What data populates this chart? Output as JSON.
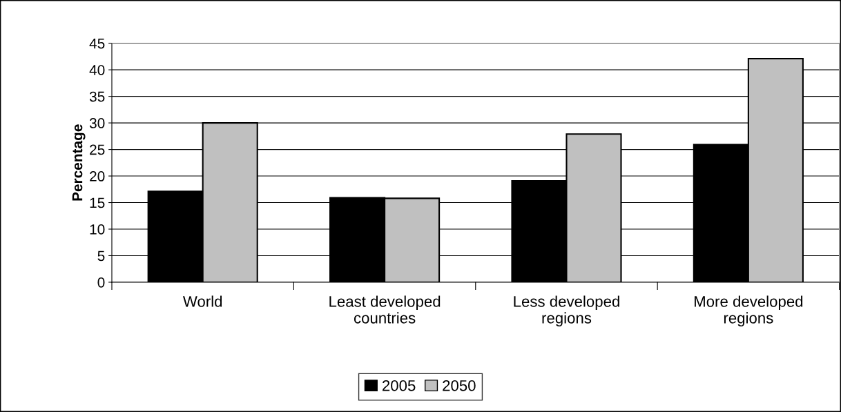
{
  "chart_data": {
    "type": "bar",
    "ylabel": "Percentage",
    "categories": [
      "World",
      "Least developed\ncountries",
      "Less developed\nregions",
      "More developed\nregions"
    ],
    "series": [
      {
        "name": "2005",
        "color": "#000000",
        "values": [
          17.1,
          15.9,
          19.1,
          25.9
        ]
      },
      {
        "name": "2050",
        "color": "#c0c0c0",
        "values": [
          30,
          15.8,
          27.9,
          42.1
        ]
      }
    ],
    "ylim": [
      0,
      45
    ],
    "yticks": [
      0,
      5,
      10,
      15,
      20,
      25,
      30,
      35,
      40,
      45
    ],
    "grid": "y",
    "legend": "bottom"
  }
}
